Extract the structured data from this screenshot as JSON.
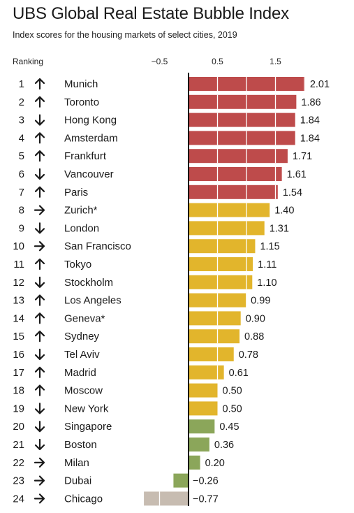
{
  "title": "UBS Global Real Estate Bubble Index",
  "subtitle": "Index scores for the housing markets of select cities, 2019",
  "ranking_header": "Ranking",
  "colors": {
    "red": "#be4b4b",
    "yellow": "#e2b52c",
    "green": "#8ba65a",
    "grey": "#c7bcb1",
    "axis": "#000000"
  },
  "chart_data": {
    "type": "bar",
    "orientation": "horizontal",
    "title": "UBS Global Real Estate Bubble Index",
    "subtitle": "Index scores for the housing markets of select cities, 2019",
    "tick_labels": [
      "−0.5",
      "0.5",
      "1.5"
    ],
    "tick_values": [
      -0.5,
      0.5,
      1.5
    ],
    "xlim": [
      -0.85,
      2.1
    ],
    "grid": "vertical white lines inside bars",
    "rows": [
      {
        "rank": "1",
        "trend": "up",
        "city": "Munich",
        "value": 2.01,
        "label": "2.01",
        "color": "red"
      },
      {
        "rank": "2",
        "trend": "up",
        "city": "Toronto",
        "value": 1.86,
        "label": "1.86",
        "color": "red"
      },
      {
        "rank": "3",
        "trend": "down",
        "city": "Hong Kong",
        "value": 1.84,
        "label": "1.84",
        "color": "red"
      },
      {
        "rank": "4",
        "trend": "up",
        "city": "Amsterdam",
        "value": 1.84,
        "label": "1.84",
        "color": "red"
      },
      {
        "rank": "5",
        "trend": "up",
        "city": "Frankfurt",
        "value": 1.71,
        "label": "1.71",
        "color": "red"
      },
      {
        "rank": "6",
        "trend": "down",
        "city": "Vancouver",
        "value": 1.61,
        "label": "1.61",
        "color": "red"
      },
      {
        "rank": "7",
        "trend": "up",
        "city": "Paris",
        "value": 1.54,
        "label": "1.54",
        "color": "red"
      },
      {
        "rank": "8",
        "trend": "right",
        "city": "Zurich*",
        "value": 1.4,
        "label": "1.40",
        "color": "yellow"
      },
      {
        "rank": "9",
        "trend": "down",
        "city": "London",
        "value": 1.31,
        "label": "1.31",
        "color": "yellow"
      },
      {
        "rank": "10",
        "trend": "right",
        "city": "San Francisco",
        "value": 1.15,
        "label": "1.15",
        "color": "yellow"
      },
      {
        "rank": "11",
        "trend": "up",
        "city": "Tokyo",
        "value": 1.11,
        "label": "1.11",
        "color": "yellow"
      },
      {
        "rank": "12",
        "trend": "down",
        "city": "Stockholm",
        "value": 1.1,
        "label": "1.10",
        "color": "yellow"
      },
      {
        "rank": "13",
        "trend": "up",
        "city": "Los Angeles",
        "value": 0.99,
        "label": "0.99",
        "color": "yellow"
      },
      {
        "rank": "14",
        "trend": "up",
        "city": "Geneva*",
        "value": 0.9,
        "label": "0.90",
        "color": "yellow"
      },
      {
        "rank": "15",
        "trend": "up",
        "city": "Sydney",
        "value": 0.88,
        "label": "0.88",
        "color": "yellow"
      },
      {
        "rank": "16",
        "trend": "down",
        "city": "Tel Aviv",
        "value": 0.78,
        "label": "0.78",
        "color": "yellow"
      },
      {
        "rank": "17",
        "trend": "up",
        "city": "Madrid",
        "value": 0.61,
        "label": "0.61",
        "color": "yellow"
      },
      {
        "rank": "18",
        "trend": "up",
        "city": "Moscow",
        "value": 0.5,
        "label": "0.50",
        "color": "yellow"
      },
      {
        "rank": "19",
        "trend": "down",
        "city": "New York",
        "value": 0.5,
        "label": "0.50",
        "color": "yellow"
      },
      {
        "rank": "20",
        "trend": "down",
        "city": "Singapore",
        "value": 0.45,
        "label": "0.45",
        "color": "green"
      },
      {
        "rank": "21",
        "trend": "down",
        "city": "Boston",
        "value": 0.36,
        "label": "0.36",
        "color": "green"
      },
      {
        "rank": "22",
        "trend": "right",
        "city": "Milan",
        "value": 0.2,
        "label": "0.20",
        "color": "green"
      },
      {
        "rank": "23",
        "trend": "right",
        "city": "Dubai",
        "value": -0.26,
        "label": "−0.26",
        "color": "green"
      },
      {
        "rank": "24",
        "trend": "right",
        "city": "Chicago",
        "value": -0.77,
        "label": "−0.77",
        "color": "grey"
      }
    ]
  }
}
